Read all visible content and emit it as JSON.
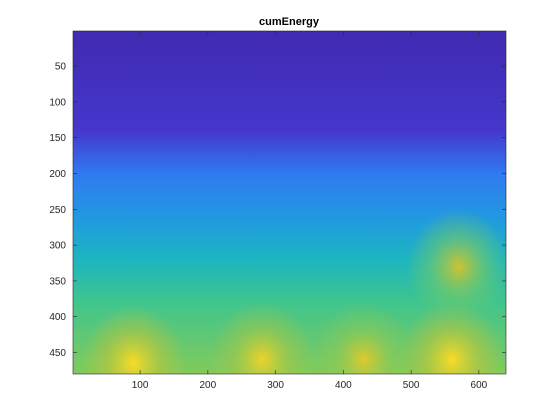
{
  "chart_data": {
    "type": "heatmap",
    "title": "cumEnergy",
    "xlabel": "",
    "ylabel": "",
    "colormap": "parula",
    "colormap_colors": [
      "#3e26a8",
      "#4a45e8",
      "#2f7cf0",
      "#1aa7d9",
      "#1fc2a6",
      "#7fcb5c",
      "#d3c12f",
      "#fadc26"
    ],
    "xlim": [
      1,
      640
    ],
    "ylim": [
      1,
      480
    ],
    "y_reversed": true,
    "x_ticks": [
      100,
      200,
      300,
      400,
      500,
      600
    ],
    "y_ticks": [
      50,
      100,
      150,
      200,
      250,
      300,
      350,
      400,
      450
    ],
    "x_tick_labels": [
      "100",
      "200",
      "300",
      "400",
      "500",
      "600"
    ],
    "y_tick_labels": [
      "50",
      "100",
      "150",
      "200",
      "250",
      "300",
      "350",
      "400",
      "450"
    ],
    "value_profile_by_row": [
      {
        "y": 1,
        "level": 0.02
      },
      {
        "y": 140,
        "level": 0.08
      },
      {
        "y": 200,
        "level": 0.28
      },
      {
        "y": 260,
        "level": 0.38
      },
      {
        "y": 320,
        "level": 0.5
      },
      {
        "y": 380,
        "level": 0.62
      },
      {
        "y": 480,
        "level": 0.72
      }
    ],
    "hotspots": [
      {
        "x": 90,
        "y": 465,
        "level": 1.0
      },
      {
        "x": 280,
        "y": 460,
        "level": 0.95
      },
      {
        "x": 430,
        "y": 460,
        "level": 0.9
      },
      {
        "x": 560,
        "y": 460,
        "level": 1.0
      },
      {
        "x": 570,
        "y": 330,
        "level": 0.85
      }
    ]
  }
}
